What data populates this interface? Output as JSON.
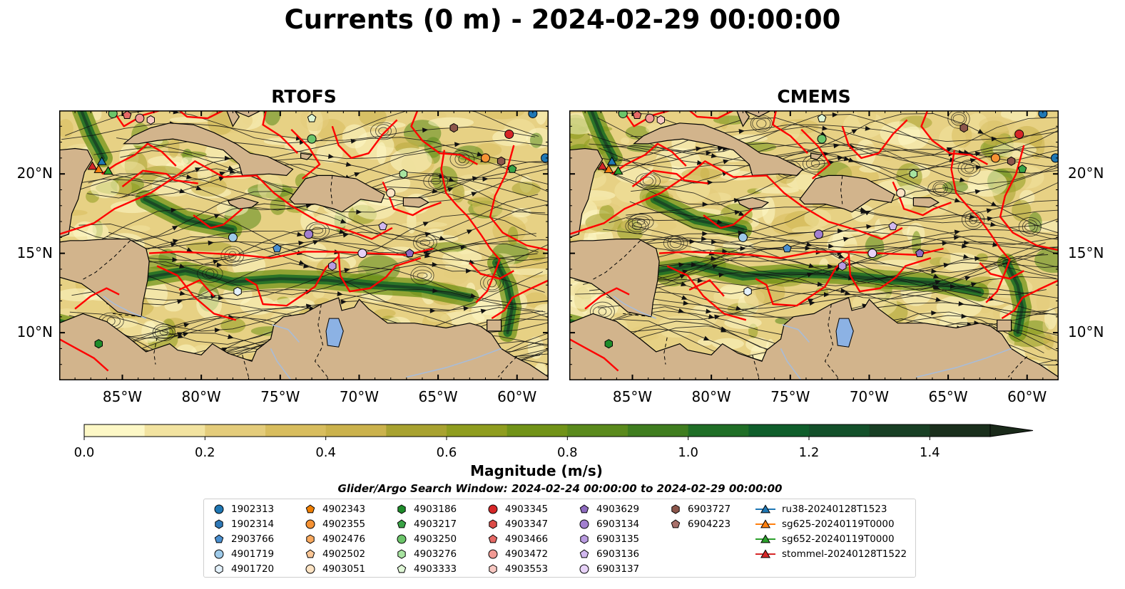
{
  "title": "Currents (0 m) - 2024-02-29 00:00:00",
  "panels": [
    {
      "name": "RTOFS",
      "variant": 0
    },
    {
      "name": "CMEMS",
      "variant": 1
    }
  ],
  "map_extent": {
    "lon": [
      -89,
      -58
    ],
    "lat": [
      7,
      24
    ]
  },
  "axes": {
    "lon_ticks": [
      {
        "value": -85,
        "label": "85°W"
      },
      {
        "value": -80,
        "label": "80°W"
      },
      {
        "value": -75,
        "label": "75°W"
      },
      {
        "value": -70,
        "label": "70°W"
      },
      {
        "value": -65,
        "label": "65°W"
      },
      {
        "value": -60,
        "label": "60°W"
      }
    ],
    "lat_ticks": [
      {
        "value": 20,
        "label": "20°N"
      },
      {
        "value": 15,
        "label": "15°N"
      },
      {
        "value": 10,
        "label": "10°N"
      }
    ]
  },
  "colorbar": {
    "label": "Magnitude (m/s)",
    "range": [
      0,
      1.5
    ],
    "step": 0.1,
    "extend": "max",
    "ticks": [
      {
        "value": 0.0,
        "label": "0.0"
      },
      {
        "value": 0.2,
        "label": "0.2"
      },
      {
        "value": 0.4,
        "label": "0.4"
      },
      {
        "value": 0.6,
        "label": "0.6"
      },
      {
        "value": 0.8,
        "label": "0.8"
      },
      {
        "value": 1.0,
        "label": "1.0"
      },
      {
        "value": 1.2,
        "label": "1.2"
      },
      {
        "value": 1.4,
        "label": "1.4"
      }
    ],
    "colors": [
      "#fdf8c6",
      "#f2e3a0",
      "#e4cc7b",
      "#d8bd5e",
      "#cbb24c",
      "#a8a230",
      "#8f9d1f",
      "#719318",
      "#5a8a1c",
      "#3f7d1f",
      "#1f6e26",
      "#0f5e2b",
      "#13502a",
      "#183f24",
      "#1a2f1c"
    ]
  },
  "search_window_label": "Glider/Argo Search Window: 2024-02-24 00:00:00 to 2024-02-29 00:00:00",
  "colors": {
    "land": "#d2b48c",
    "eez": "#ff0000",
    "lake": "#8cb2e4",
    "river": "#a8bcd8"
  },
  "legend": [
    {
      "label": "1902313",
      "shape": "circle",
      "color": "#1f77b4"
    },
    {
      "label": "1902314",
      "shape": "hexagon",
      "color": "#2f79b8"
    },
    {
      "label": "2903766",
      "shape": "pentagon",
      "color": "#4a8fd0"
    },
    {
      "label": "4901719",
      "shape": "circle",
      "color": "#9ecae9"
    },
    {
      "label": "4901720",
      "shape": "hexagon",
      "color": "#e3f1fb"
    },
    {
      "label": "4902343",
      "shape": "pentagon",
      "color": "#f07f00"
    },
    {
      "label": "4902355",
      "shape": "circle",
      "color": "#f59234"
    },
    {
      "label": "4902476",
      "shape": "hexagon",
      "color": "#f9a95e"
    },
    {
      "label": "4902502",
      "shape": "pentagon",
      "color": "#fbc796"
    },
    {
      "label": "4903051",
      "shape": "circle",
      "color": "#fde3c3"
    },
    {
      "label": "4903186",
      "shape": "hexagon",
      "color": "#1e8c2a"
    },
    {
      "label": "4903217",
      "shape": "pentagon",
      "color": "#3aa346"
    },
    {
      "label": "4903250",
      "shape": "circle",
      "color": "#6cc56a"
    },
    {
      "label": "4903276",
      "shape": "hexagon",
      "color": "#a7e3a0"
    },
    {
      "label": "4903333",
      "shape": "pentagon",
      "color": "#dff7d6"
    },
    {
      "label": "4903345",
      "shape": "circle",
      "color": "#d62728"
    },
    {
      "label": "4903347",
      "shape": "hexagon",
      "color": "#dc4c47"
    },
    {
      "label": "4903466",
      "shape": "pentagon",
      "color": "#e66a66"
    },
    {
      "label": "4903472",
      "shape": "circle",
      "color": "#f29a94"
    },
    {
      "label": "4903553",
      "shape": "hexagon",
      "color": "#f8c8c2"
    },
    {
      "label": "4903629",
      "shape": "pentagon",
      "color": "#8e6bbf"
    },
    {
      "label": "6903134",
      "shape": "circle",
      "color": "#a27fcf"
    },
    {
      "label": "6903135",
      "shape": "hexagon",
      "color": "#b99be0"
    },
    {
      "label": "6903136",
      "shape": "pentagon",
      "color": "#d2b8ef"
    },
    {
      "label": "6903137",
      "shape": "circle",
      "color": "#e7d2f8"
    },
    {
      "label": "6903727",
      "shape": "hexagon",
      "color": "#8c564b"
    },
    {
      "label": "6904223",
      "shape": "pentagon",
      "color": "#a8706a"
    },
    {
      "label": "ru38-20240128T1523",
      "shape": "triangle-line",
      "color": "#1f77b4"
    },
    {
      "label": "sg625-20240119T0000",
      "shape": "triangle-line",
      "color": "#ff7f0e"
    },
    {
      "label": "sg652-20240119T0000",
      "shape": "triangle-line",
      "color": "#2ca02c"
    },
    {
      "label": "stommel-20240128T1522",
      "shape": "triangle-line",
      "color": "#d62728"
    }
  ],
  "floats": [
    {
      "id": "1902313",
      "lon": -59.0,
      "lat": 23.8
    },
    {
      "id": "1902313",
      "lon": -58.2,
      "lat": 21.0
    },
    {
      "id": "4903345",
      "lon": -60.5,
      "lat": 22.5
    },
    {
      "id": "6903727",
      "lon": -64.0,
      "lat": 22.9
    },
    {
      "id": "6903727",
      "lon": -61.0,
      "lat": 20.8
    },
    {
      "id": "4903217",
      "lon": -60.3,
      "lat": 20.3
    },
    {
      "id": "4902355",
      "lon": -62.0,
      "lat": 21.0
    },
    {
      "id": "4903276",
      "lon": -67.2,
      "lat": 20.0
    },
    {
      "id": "4903051",
      "lon": -68.0,
      "lat": 18.8
    },
    {
      "id": "6903136",
      "lon": -68.5,
      "lat": 16.7
    },
    {
      "id": "6903134",
      "lon": -73.2,
      "lat": 16.2
    },
    {
      "id": "4903629",
      "lon": -66.8,
      "lat": 15.0
    },
    {
      "id": "6903137",
      "lon": -69.8,
      "lat": 15.0
    },
    {
      "id": "6903135",
      "lon": -71.7,
      "lat": 14.2
    },
    {
      "id": "4901719",
      "lon": -78.0,
      "lat": 16.0
    },
    {
      "id": "2903766",
      "lon": -75.2,
      "lat": 15.3
    },
    {
      "id": "4901720",
      "lon": -77.7,
      "lat": 12.6
    },
    {
      "id": "4903250",
      "lon": -73.0,
      "lat": 22.2
    },
    {
      "id": "4903333",
      "lon": -73.0,
      "lat": 23.5
    },
    {
      "id": "4903472",
      "lon": -83.9,
      "lat": 23.5
    },
    {
      "id": "4903553",
      "lon": -83.2,
      "lat": 23.4
    },
    {
      "id": "4903250",
      "lon": -85.6,
      "lat": 23.8
    },
    {
      "id": "4903186",
      "lon": -86.5,
      "lat": 9.3
    },
    {
      "id": "4903466",
      "lon": -84.7,
      "lat": 23.7
    }
  ],
  "gliders": [
    {
      "id": "ru38-20240128T1523",
      "lon": -86.3,
      "lat": 20.8
    },
    {
      "id": "sg625-20240119T0000",
      "lon": -86.5,
      "lat": 20.3
    },
    {
      "id": "sg652-20240119T0000",
      "lon": -85.9,
      "lat": 20.2
    },
    {
      "id": "stommel-20240128T1522",
      "lon": -86.9,
      "lat": 20.5
    }
  ]
}
